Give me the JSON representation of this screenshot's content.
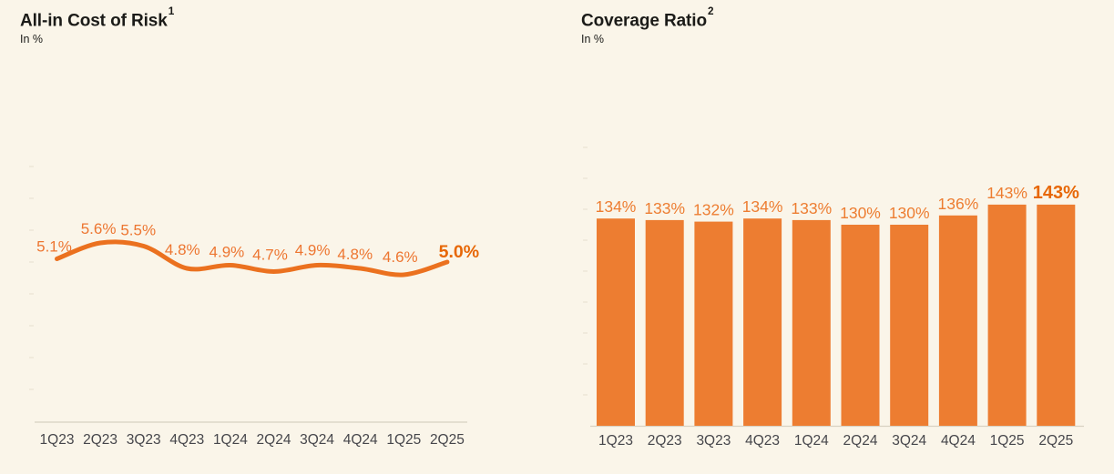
{
  "colors": {
    "background": "#FAF5E9",
    "line_orange": "#EB711F",
    "bar_orange": "#ED7D31",
    "label_orange": "#ED7631",
    "emphasis_orange": "#E76706",
    "title_text": "#1B1B18",
    "axis_text": "#46464B",
    "axis_line": "#D8D2C2",
    "tick_mark": "#E6E0CE"
  },
  "chart_data": [
    {
      "type": "line",
      "title": "All-in Cost of Risk",
      "title_superscript": "1",
      "subtitle": "In %",
      "categories": [
        "1Q23",
        "2Q23",
        "3Q23",
        "4Q23",
        "1Q24",
        "2Q24",
        "3Q24",
        "4Q24",
        "1Q25",
        "2Q25"
      ],
      "values": [
        5.1,
        5.6,
        5.5,
        4.8,
        4.9,
        4.7,
        4.9,
        4.8,
        4.6,
        5.0
      ],
      "data_labels": [
        "5.1%",
        "5.6%",
        "5.5%",
        "4.8%",
        "4.9%",
        "4.7%",
        "4.9%",
        "4.8%",
        "4.6%",
        "5.0%"
      ],
      "emphasized_index": 9,
      "ylim": [
        0,
        8
      ],
      "grid": false,
      "legend": "none"
    },
    {
      "type": "bar",
      "title": "Coverage Ratio",
      "title_superscript": "2",
      "subtitle": "In %",
      "categories": [
        "1Q23",
        "2Q23",
        "3Q23",
        "4Q23",
        "1Q24",
        "2Q24",
        "3Q24",
        "4Q24",
        "1Q25",
        "2Q25"
      ],
      "values": [
        134,
        133,
        132,
        134,
        133,
        130,
        130,
        136,
        143,
        143
      ],
      "data_labels": [
        "134%",
        "133%",
        "132%",
        "134%",
        "133%",
        "130%",
        "130%",
        "136%",
        "143%",
        "143%"
      ],
      "emphasized_index": 9,
      "ylim": [
        0,
        180
      ],
      "grid": false,
      "legend": "none"
    }
  ]
}
